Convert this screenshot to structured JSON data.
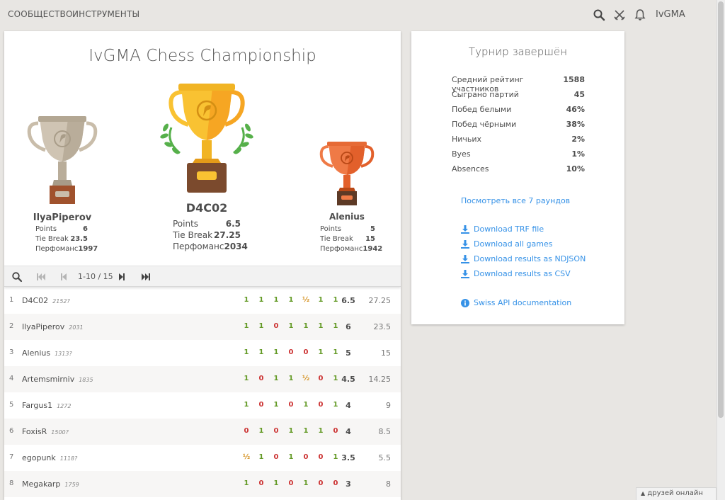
{
  "nav": {
    "community": "СООБЩЕСТВО",
    "tools": "ИНСТРУМЕНТЫ",
    "user": "IvGMA",
    "icons": [
      "search-icon",
      "crossed-swords-icon",
      "bell-icon"
    ]
  },
  "tournament": {
    "title": "IvGMA Chess Championship",
    "podium": {
      "first": {
        "name": "D4C02",
        "points": "6.5",
        "tiebreak": "27.25",
        "performance": "2034"
      },
      "second": {
        "name": "IlyaPiperov",
        "points": "6",
        "tiebreak": "23.5",
        "performance": "1997"
      },
      "third": {
        "name": "Alenius",
        "points": "5",
        "tiebreak": "15",
        "performance": "1942"
      }
    },
    "labels": {
      "points": "Points",
      "tiebreak": "Tie Break",
      "performance": "Перфоманс"
    }
  },
  "pager": {
    "range": "1-10 / 15"
  },
  "standings": [
    {
      "rank": "1",
      "name": "D4C02",
      "rating": "2152?",
      "results": [
        "1",
        "1",
        "1",
        "1",
        "½",
        "1",
        "1"
      ],
      "points": "6.5",
      "tiebreak": "27.25"
    },
    {
      "rank": "2",
      "name": "IlyaPiperov",
      "rating": "2031",
      "results": [
        "1",
        "1",
        "0",
        "1",
        "1",
        "1",
        "1"
      ],
      "points": "6",
      "tiebreak": "23.5"
    },
    {
      "rank": "3",
      "name": "Alenius",
      "rating": "1313?",
      "results": [
        "1",
        "1",
        "1",
        "0",
        "0",
        "1",
        "1"
      ],
      "points": "5",
      "tiebreak": "15"
    },
    {
      "rank": "4",
      "name": "Artemsmirniv",
      "rating": "1835",
      "results": [
        "1",
        "0",
        "1",
        "1",
        "½",
        "0",
        "1"
      ],
      "points": "4.5",
      "tiebreak": "14.25"
    },
    {
      "rank": "5",
      "name": "Fargus1",
      "rating": "1272",
      "results": [
        "1",
        "0",
        "1",
        "0",
        "1",
        "0",
        "1"
      ],
      "points": "4",
      "tiebreak": "9"
    },
    {
      "rank": "6",
      "name": "FoxisR",
      "rating": "1500?",
      "results": [
        "0",
        "1",
        "0",
        "1",
        "1",
        "1",
        "0"
      ],
      "points": "4",
      "tiebreak": "8.5"
    },
    {
      "rank": "7",
      "name": "egopunk",
      "rating": "1118?",
      "results": [
        "½",
        "1",
        "0",
        "1",
        "0",
        "0",
        "1"
      ],
      "points": "3.5",
      "tiebreak": "5.5"
    },
    {
      "rank": "8",
      "name": "Megakarp",
      "rating": "1759",
      "results": [
        "1",
        "0",
        "1",
        "0",
        "1",
        "0",
        "0"
      ],
      "points": "3",
      "tiebreak": "8"
    }
  ],
  "side": {
    "title": "Турнир завершён",
    "stats": [
      {
        "label": "Средний рейтинг участников",
        "value": "1588"
      },
      {
        "label": "Сыграно партий",
        "value": "45"
      },
      {
        "label": "Побед белыми",
        "value": "46%"
      },
      {
        "label": "Побед чёрными",
        "value": "38%"
      },
      {
        "label": "Ничьих",
        "value": "2%"
      },
      {
        "label": "Byes",
        "value": "1%"
      },
      {
        "label": "Absences",
        "value": "10%"
      }
    ],
    "rounds_link": "Посмотреть все 7 раундов",
    "downloads": [
      "Download TRF file",
      "Download all games",
      "Download results as NDJSON",
      "Download results as CSV"
    ],
    "api_doc": "Swiss API documentation"
  },
  "friends": "друзей онлайн",
  "colors": {
    "win": "#629924",
    "loss": "#cc3333",
    "draw": "#d59120",
    "link": "#3692e7",
    "gold": "#f9c232",
    "silver": "#c9bdaa",
    "bronze": "#ef7a46"
  }
}
